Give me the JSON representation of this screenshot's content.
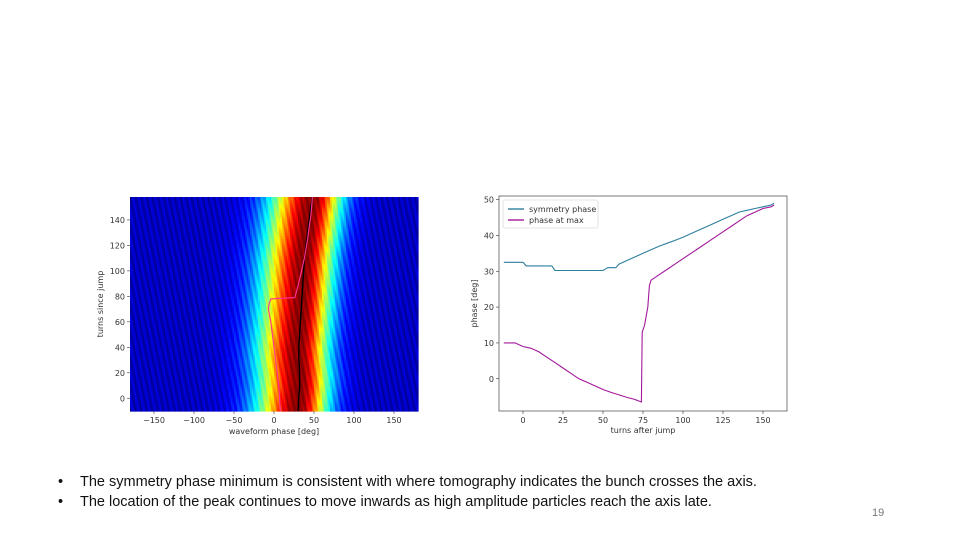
{
  "chart_data": [
    {
      "type": "heatmap",
      "xlabel": "waveform phase [deg]",
      "ylabel": "turns since jump",
      "xlim": [
        -180,
        180
      ],
      "ylim": [
        -10,
        158
      ],
      "xticks": [
        -150,
        -100,
        -50,
        0,
        50,
        100,
        150
      ],
      "yticks": [
        0,
        20,
        40,
        60,
        80,
        100,
        120,
        140
      ],
      "colormap": "jet",
      "series": [
        {
          "color": "#000000",
          "x": [
            30,
            31,
            32,
            32,
            31,
            31,
            32,
            33,
            34,
            35,
            36,
            37,
            38,
            40,
            42,
            44,
            46,
            48
          ],
          "y": [
            -10,
            0,
            10,
            20,
            30,
            40,
            50,
            60,
            70,
            80,
            90,
            100,
            110,
            120,
            130,
            140,
            150,
            158
          ]
        },
        {
          "color": "#ff3399",
          "x": [
            8,
            6,
            2,
            -1,
            -4,
            -7,
            -6,
            -5,
            -4,
            26,
            30,
            38,
            42,
            44,
            46,
            47,
            48
          ],
          "y": [
            -10,
            10,
            30,
            45,
            60,
            70,
            75,
            76,
            78,
            79,
            88,
            110,
            125,
            135,
            143,
            150,
            158
          ]
        }
      ]
    },
    {
      "type": "line",
      "xlabel": "turns after jump",
      "ylabel": "phase [deg]",
      "xlim": [
        -15,
        165
      ],
      "ylim": [
        -9,
        51
      ],
      "xticks": [
        0,
        25,
        50,
        75,
        100,
        125,
        150
      ],
      "yticks": [
        0,
        10,
        20,
        30,
        40,
        50
      ],
      "legend": "top-left",
      "series": [
        {
          "name": "symmetry phase",
          "color": "#2d7f9e",
          "x": [
            -12,
            0,
            2,
            18,
            20,
            50,
            53,
            58,
            60,
            65,
            70,
            75,
            80,
            85,
            90,
            95,
            100,
            105,
            110,
            115,
            120,
            125,
            130,
            135,
            140,
            145,
            150,
            155,
            157
          ],
          "y": [
            32.5,
            32.5,
            31.5,
            31.5,
            30.2,
            30.2,
            31.0,
            31.0,
            32.0,
            33.0,
            34.0,
            35.0,
            36.0,
            37.0,
            37.8,
            38.6,
            39.5,
            40.5,
            41.5,
            42.5,
            43.5,
            44.5,
            45.5,
            46.5,
            47.0,
            47.5,
            48.0,
            48.5,
            49.0
          ]
        },
        {
          "name": "phase at max",
          "color": "#a3189b",
          "x": [
            -12,
            -5,
            0,
            5,
            10,
            15,
            20,
            25,
            30,
            35,
            40,
            45,
            50,
            55,
            60,
            65,
            70,
            74,
            74.5,
            76,
            78,
            79,
            80,
            85,
            90,
            95,
            100,
            105,
            110,
            115,
            120,
            125,
            130,
            135,
            140,
            145,
            150,
            155,
            157
          ],
          "y": [
            10,
            10,
            9,
            8.5,
            7.5,
            6,
            4.5,
            3,
            1.5,
            0,
            -1,
            -2,
            -3,
            -3.8,
            -4.5,
            -5.2,
            -5.8,
            -6.5,
            13,
            15,
            20,
            26,
            27.5,
            29,
            30.5,
            32,
            33.5,
            35,
            36.5,
            38,
            39.5,
            41,
            42.5,
            44,
            45.5,
            46.5,
            47.5,
            48,
            48.5
          ]
        }
      ]
    }
  ],
  "bullets": [
    "The symmetry phase minimum is consistent with where tomography indicates the bunch crosses the axis.",
    "The location of the peak continues to move inwards as high amplitude particles reach the axis late."
  ],
  "slide_number": "19"
}
